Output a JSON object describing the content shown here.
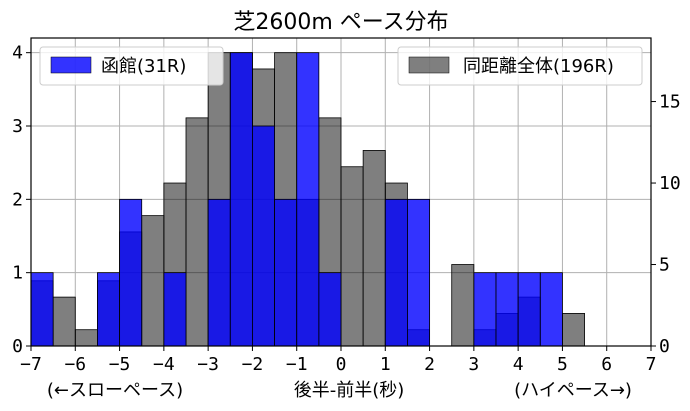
{
  "chart_data": {
    "type": "bar",
    "title": "芝2600m ペース分布",
    "xlabel": "後半-前半(秒)",
    "xlabel_left": "(←スローペース)",
    "xlabel_right": "(ハイペース→)",
    "xlim": [
      -7,
      7
    ],
    "ylim_left": [
      0,
      4.2
    ],
    "ylim_right": [
      0,
      18.9
    ],
    "x_ticks": [
      -7,
      -6,
      -5,
      -4,
      -3,
      -2,
      -1,
      0,
      1,
      2,
      3,
      4,
      5,
      6,
      7
    ],
    "y_ticks_left": [
      0,
      1,
      2,
      3,
      4
    ],
    "y_ticks_right": [
      0,
      5,
      10,
      15
    ],
    "grid": true,
    "bin_width": 0.5,
    "bin_starts": [
      -7,
      -6.5,
      -6,
      -5.5,
      -5,
      -4.5,
      -4,
      -3.5,
      -3,
      -2.5,
      -2,
      -1.5,
      -1,
      -0.5,
      0,
      0.5,
      1,
      1.5,
      2,
      2.5,
      3,
      3.5,
      4,
      4.5,
      5,
      5.5,
      6,
      6.5
    ],
    "series": [
      {
        "name": "函館(31R)",
        "axis": "left",
        "color": "#0000ff",
        "opacity": 0.8,
        "values": [
          1,
          0,
          0,
          1,
          2,
          0,
          1,
          0,
          2,
          4,
          3,
          2,
          4,
          1,
          0,
          0,
          2,
          2,
          0,
          0,
          1,
          1,
          1,
          1,
          0,
          0,
          0,
          0
        ]
      },
      {
        "name": "同距離全体(196R)",
        "axis": "right",
        "color": "#000000",
        "opacity": 0.5,
        "values": [
          4,
          3,
          1,
          4,
          7,
          8,
          10,
          14,
          18,
          18,
          17,
          18,
          9,
          14,
          11,
          12,
          10,
          1,
          0,
          5,
          1,
          2,
          3,
          0,
          2,
          0,
          0,
          0
        ]
      }
    ],
    "legend_left_position": "upper-left",
    "legend_right_position": "upper-right"
  }
}
